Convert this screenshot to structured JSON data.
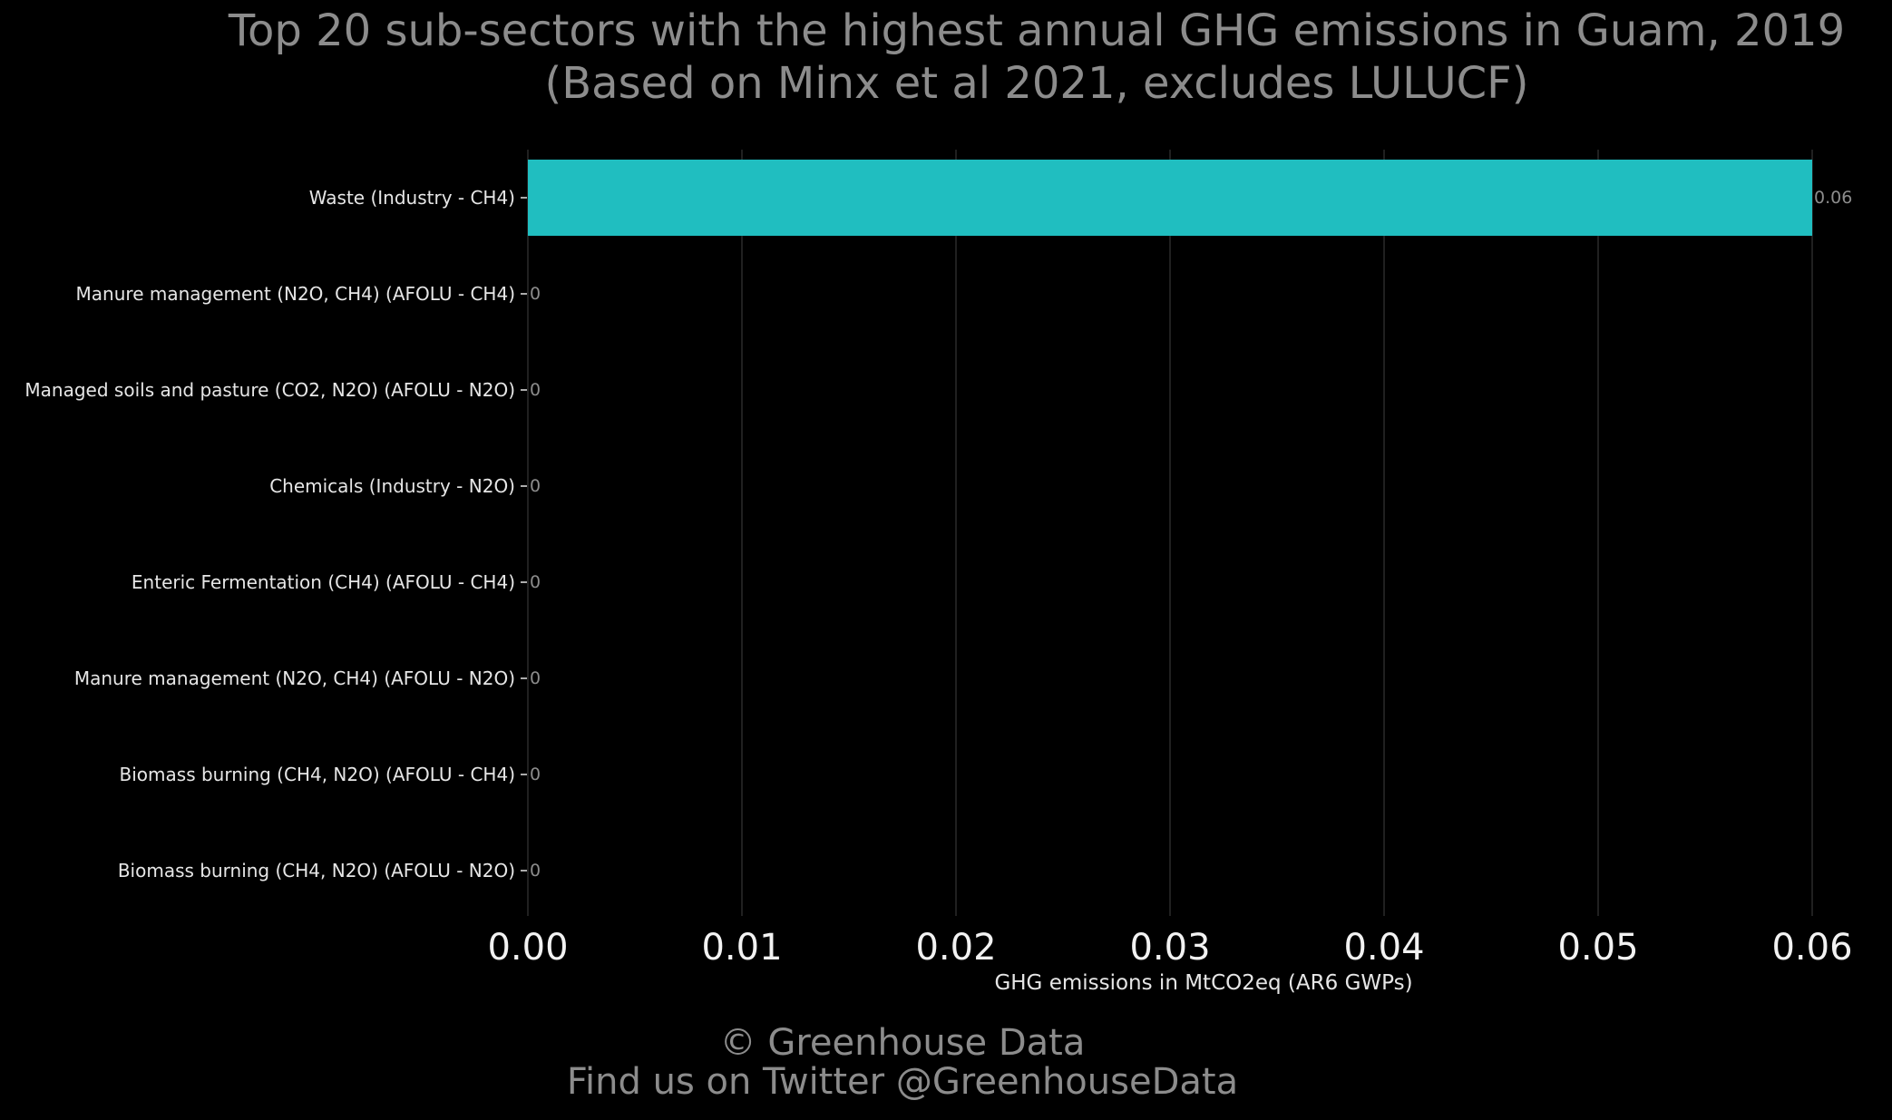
{
  "chart_data": {
    "type": "bar",
    "orientation": "horizontal",
    "title": "Top 20 sub-sectors with the highest annual GHG emissions in Guam, 2019",
    "subtitle": "(Based on Minx et al 2021, excludes LULUCF)",
    "xlabel": "GHG emissions in MtCO2eq (AR6 GWPs)",
    "ylabel": "",
    "xlim": [
      0,
      0.06
    ],
    "x_ticks": [
      0.0,
      0.01,
      0.02,
      0.03,
      0.04,
      0.05,
      0.06
    ],
    "x_tick_labels": [
      "0.00",
      "0.01",
      "0.02",
      "0.03",
      "0.04",
      "0.05",
      "0.06"
    ],
    "grid": "vertical",
    "categories": [
      "Waste (Industry - CH4)",
      "Manure management (N2O, CH4) (AFOLU - CH4)",
      "Managed soils and pasture (CO2, N2O) (AFOLU - N2O)",
      "Chemicals (Industry - N2O)",
      "Enteric Fermentation (CH4) (AFOLU - CH4)",
      "Manure management (N2O, CH4) (AFOLU - N2O)",
      "Biomass burning (CH4, N2O) (AFOLU - CH4)",
      "Biomass burning (CH4, N2O) (AFOLU - N2O)"
    ],
    "values": [
      0.06,
      0,
      0,
      0,
      0,
      0,
      0,
      0
    ],
    "data_labels": [
      "0.06",
      "0",
      "0",
      "0",
      "0",
      "0",
      "0",
      "0"
    ],
    "bar_color": "#20BEC0"
  },
  "footer": {
    "copyright": "© Greenhouse Data",
    "twitter": "Find us on Twitter @GreenhouseData"
  },
  "colors": {
    "background": "#000000",
    "title": "#8C8C8C",
    "category_label": "#E6E6E6",
    "tick_label": "#F2F2F2",
    "data_label": "#8C8C8C",
    "grid": "#2A2A2A",
    "footer": "#8C8C8C"
  }
}
